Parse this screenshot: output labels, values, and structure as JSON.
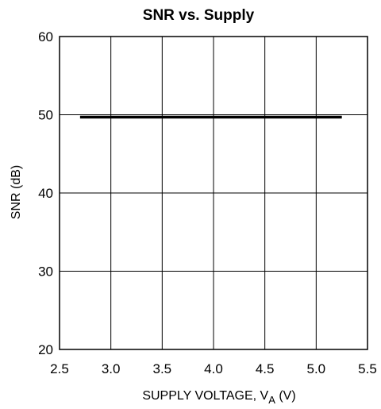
{
  "chart_data": {
    "type": "line",
    "title": "SNR vs. Supply",
    "xlabel": {
      "main": "SUPPLY VOLTAGE, V",
      "subscript": "A",
      "suffix": " (V)"
    },
    "ylabel": "SNR (dB)",
    "xlim": [
      2.5,
      5.5
    ],
    "ylim": [
      20,
      60
    ],
    "x_ticks": [
      2.5,
      3.0,
      3.5,
      4.0,
      4.5,
      5.0,
      5.5
    ],
    "x_tick_labels": [
      "2.5",
      "3.0",
      "3.5",
      "4.0",
      "4.5",
      "5.0",
      "5.5"
    ],
    "y_ticks": [
      20,
      30,
      40,
      50,
      60
    ],
    "y_tick_labels": [
      "20",
      "30",
      "40",
      "50",
      "60"
    ],
    "grid": true,
    "series": [
      {
        "x": [
          2.7,
          5.25
        ],
        "y": [
          49.7,
          49.7
        ],
        "color": "#000000"
      }
    ]
  }
}
